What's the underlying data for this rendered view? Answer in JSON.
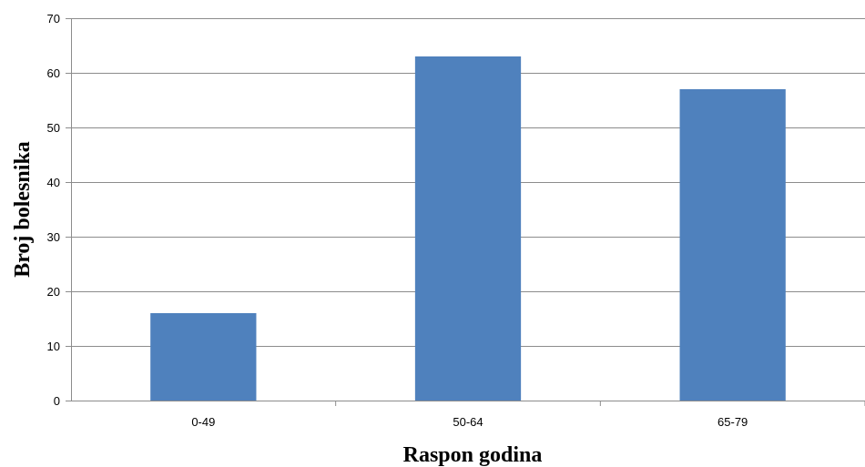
{
  "chart_data": {
    "type": "bar",
    "title": "",
    "xlabel": "Raspon godina",
    "ylabel": "Broj bolesnika",
    "categories": [
      "0-49",
      "50-64",
      "65-79"
    ],
    "values": [
      16,
      63,
      57
    ],
    "ylim": [
      0,
      70
    ],
    "yticks": [
      0,
      10,
      20,
      30,
      40,
      50,
      60,
      70
    ],
    "grid": true,
    "legend": "none",
    "bar_color": "#4f81bd"
  }
}
